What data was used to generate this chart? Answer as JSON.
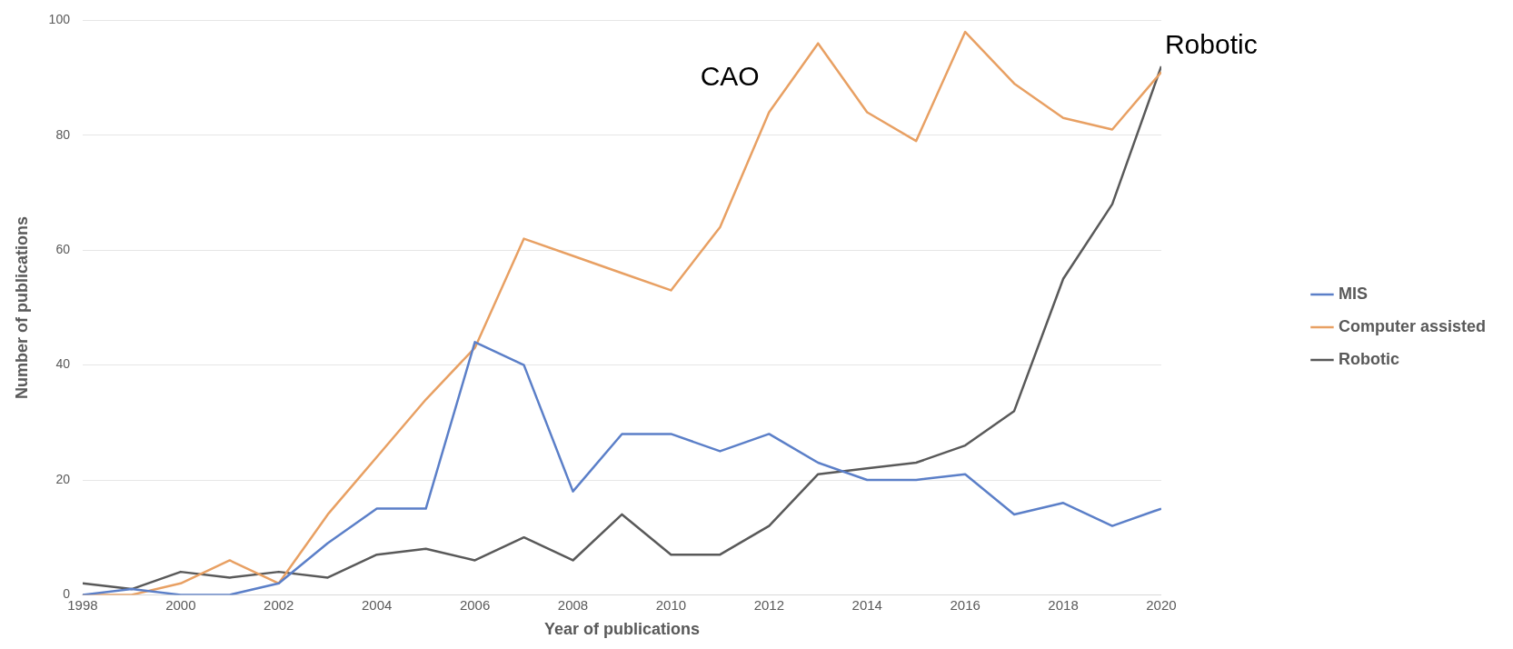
{
  "chart_data": {
    "type": "line",
    "xlabel": "Year of publications",
    "ylabel": "Number of publications",
    "x": [
      1998,
      1999,
      2000,
      2001,
      2002,
      2003,
      2004,
      2005,
      2006,
      2007,
      2008,
      2009,
      2010,
      2011,
      2012,
      2013,
      2014,
      2015,
      2016,
      2017,
      2018,
      2019,
      2020
    ],
    "xlim": [
      1998,
      2020
    ],
    "xticks": [
      1998,
      2000,
      2002,
      2004,
      2006,
      2008,
      2010,
      2012,
      2014,
      2016,
      2018,
      2020
    ],
    "ylim": [
      0,
      100
    ],
    "yticks": [
      0,
      20,
      40,
      60,
      80,
      100
    ],
    "series": [
      {
        "name": "MIS",
        "color": "#5b7fc8",
        "values": [
          0,
          1,
          0,
          0,
          2,
          9,
          15,
          15,
          44,
          40,
          18,
          28,
          28,
          25,
          28,
          23,
          20,
          20,
          21,
          14,
          16,
          12,
          15
        ]
      },
      {
        "name": "Computer assisted",
        "color": "#e8a063",
        "values": [
          0,
          0,
          2,
          6,
          2,
          14,
          24,
          34,
          43,
          62,
          59,
          56,
          53,
          64,
          84,
          96,
          84,
          79,
          98,
          89,
          83,
          81,
          91
        ]
      },
      {
        "name": "Robotic",
        "color": "#595959",
        "values": [
          2,
          1,
          4,
          3,
          4,
          3,
          7,
          8,
          6,
          10,
          6,
          14,
          7,
          7,
          12,
          21,
          22,
          23,
          26,
          32,
          55,
          68,
          92
        ]
      }
    ],
    "annotations": [
      "CAO",
      {
        "text": "Robotic",
        "x": 2020,
        "y": 92
      }
    ],
    "grid": "y",
    "legend": "right",
    "marker": "none",
    "line_style": "solid"
  }
}
